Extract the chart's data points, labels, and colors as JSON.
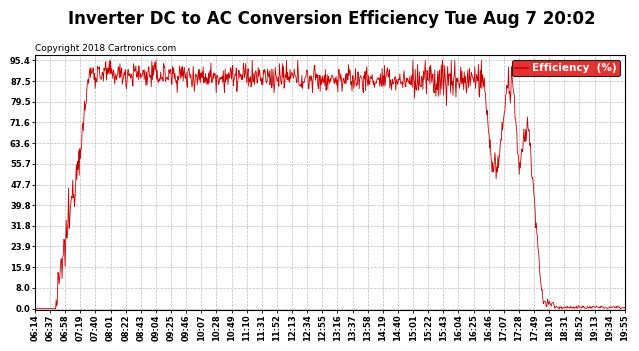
{
  "title": "Inverter DC to AC Conversion Efficiency Tue Aug 7 20:02",
  "copyright": "Copyright 2018 Cartronics.com",
  "legend_label": "Efficiency  (%)",
  "legend_bg": "#dd0000",
  "legend_text_color": "#ffffff",
  "line_color": "#cc0000",
  "bg_color": "#ffffff",
  "plot_bg_color": "#ffffff",
  "grid_color": "#bbbbbb",
  "yticks": [
    0.0,
    8.0,
    15.9,
    23.9,
    31.8,
    39.8,
    47.7,
    55.7,
    63.6,
    71.6,
    79.5,
    87.5,
    95.4
  ],
  "ylim": [
    -0.5,
    97.5
  ],
  "xtick_labels": [
    "06:14",
    "06:37",
    "06:58",
    "07:19",
    "07:40",
    "08:01",
    "08:22",
    "08:43",
    "09:04",
    "09:25",
    "09:46",
    "10:07",
    "10:28",
    "10:49",
    "11:10",
    "11:31",
    "11:52",
    "12:13",
    "12:34",
    "12:55",
    "13:16",
    "13:37",
    "13:58",
    "14:19",
    "14:40",
    "15:01",
    "15:22",
    "15:43",
    "16:04",
    "16:25",
    "16:46",
    "17:07",
    "17:28",
    "17:49",
    "18:10",
    "18:31",
    "18:52",
    "19:13",
    "19:34",
    "19:55"
  ],
  "title_fontsize": 12,
  "copyright_fontsize": 6.5,
  "tick_fontsize": 6,
  "legend_fontsize": 7.5
}
